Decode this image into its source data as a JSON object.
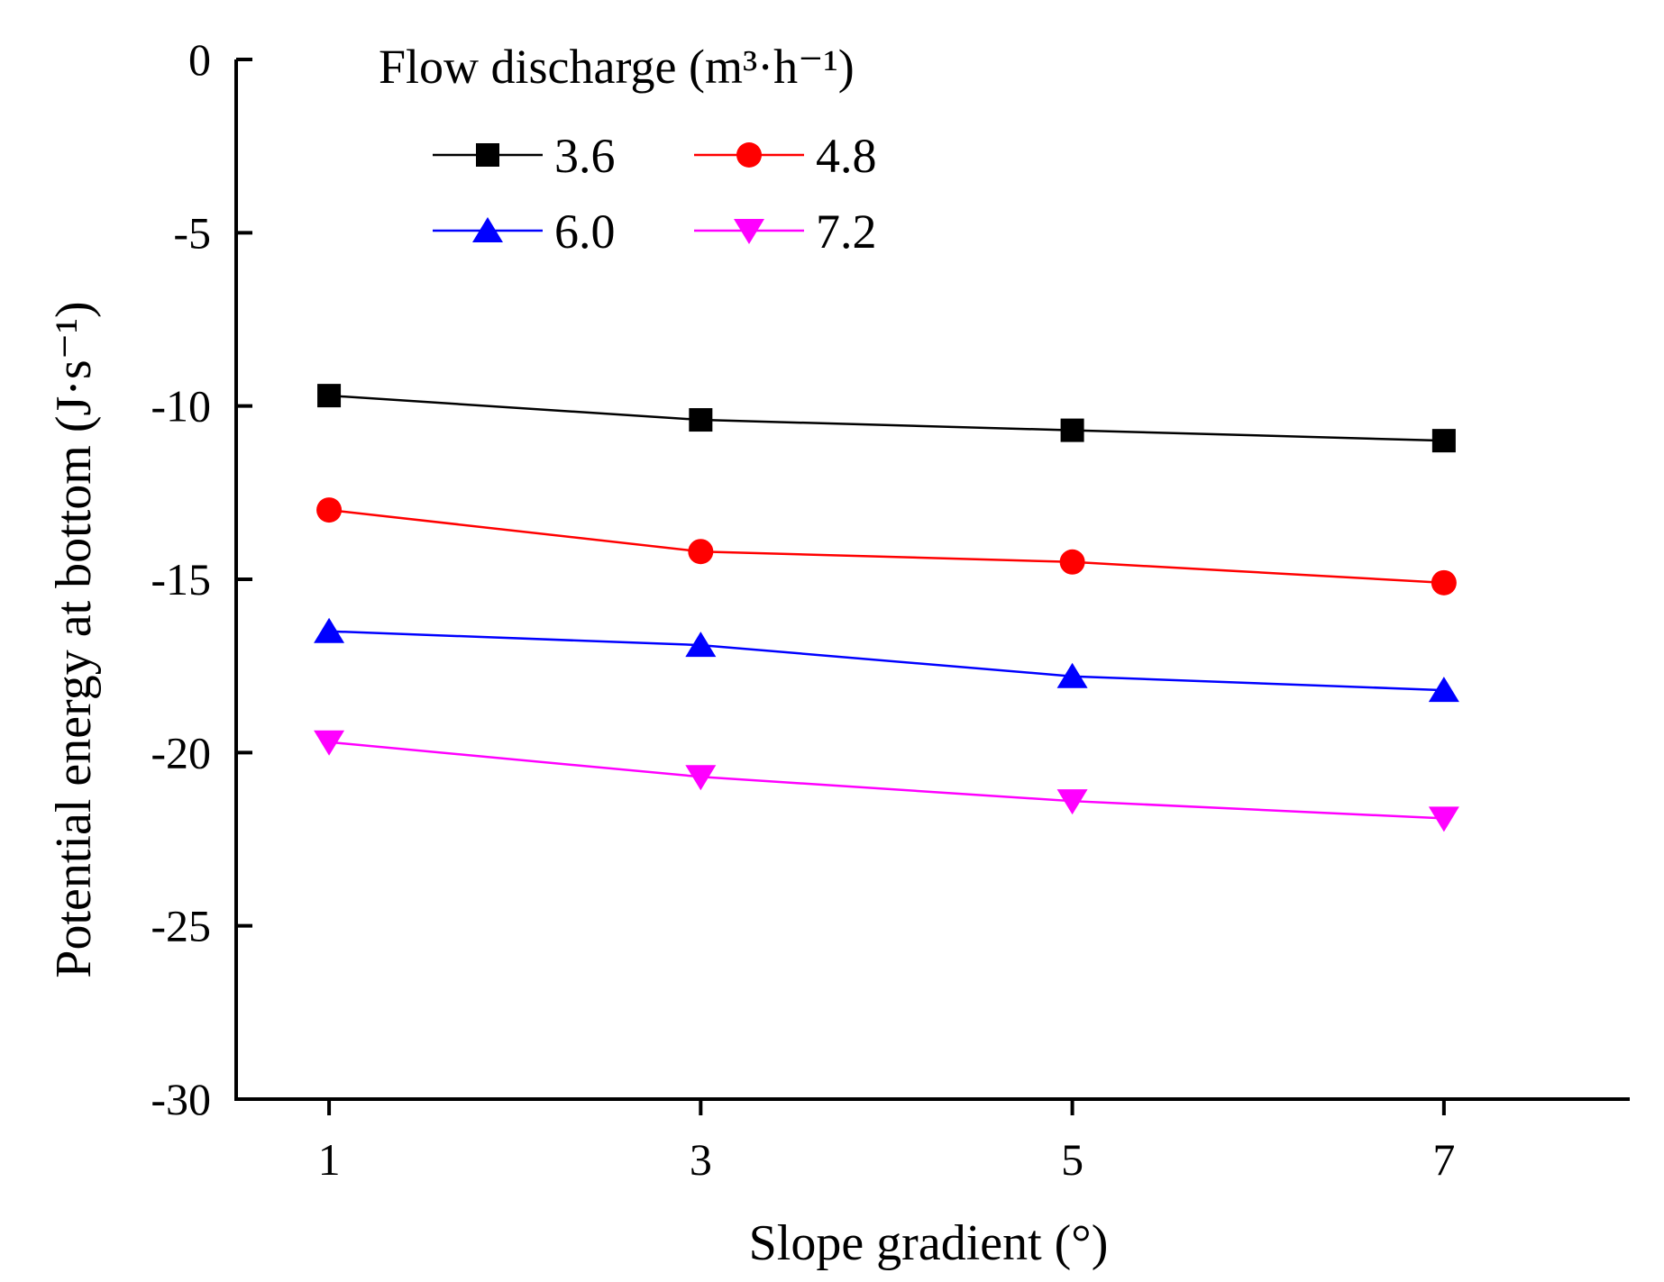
{
  "chart_data": {
    "type": "line",
    "title": "",
    "xlabel": "Slope gradient (°)",
    "ylabel": "Potential energy at bottom (J·s⁻¹)",
    "x": [
      1,
      3,
      5,
      7
    ],
    "x_tick_labels": [
      "1",
      "3",
      "5",
      "7"
    ],
    "xlim": [
      0.5,
      8.0
    ],
    "ylim": [
      -30,
      0
    ],
    "y_ticks": [
      0,
      -5,
      -10,
      -15,
      -20,
      -25,
      -30
    ],
    "y_tick_labels": [
      "0",
      "-5",
      "-10",
      "-15",
      "-20",
      "-25",
      "-30"
    ],
    "grid": false,
    "legend": {
      "title": "Flow discharge (m³·h⁻¹)",
      "placement": "top-left"
    },
    "series": [
      {
        "name": "3.6",
        "color": "#000000",
        "marker": "square",
        "values": [
          -9.7,
          -10.4,
          -10.7,
          -11.0
        ]
      },
      {
        "name": "4.8",
        "color": "#ff0000",
        "marker": "circle",
        "values": [
          -13.0,
          -14.2,
          -14.5,
          -15.1
        ]
      },
      {
        "name": "6.0",
        "color": "#0000ff",
        "marker": "triangle-up",
        "values": [
          -16.5,
          -16.9,
          -17.8,
          -18.2
        ]
      },
      {
        "name": "7.2",
        "color": "#ff00ff",
        "marker": "triangle-down",
        "values": [
          -19.7,
          -20.7,
          -21.4,
          -21.9
        ]
      }
    ]
  }
}
